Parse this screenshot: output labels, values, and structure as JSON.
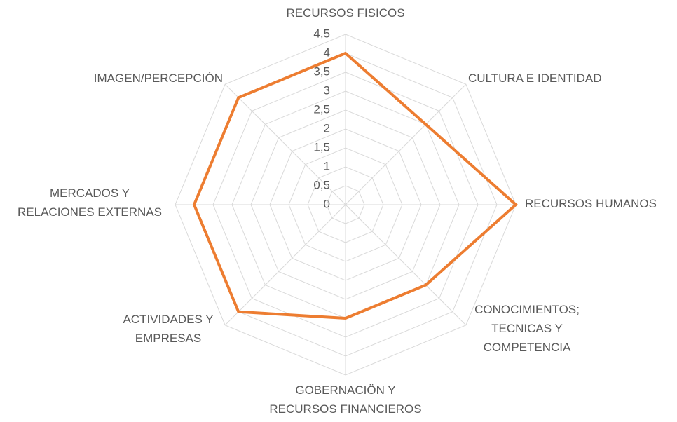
{
  "chart_data": {
    "type": "radar",
    "categories": [
      "RECURSOS FISICOS",
      "CULTURA E IDENTIDAD",
      "RECURSOS HUMANOS",
      "CONOCIMIENTOS;\nTECNICAS Y\nCOMPETENCIA",
      "GOBERNACIÖN Y\nRECURSOS FINANCIEROS",
      "ACTIVIDADES Y\nEMPRESAS",
      "MERCADOS Y\nRELACIONES EXTERNAS",
      "IMAGEN/PERCEPCIÓN"
    ],
    "values": [
      4,
      3,
      4.5,
      3,
      3,
      4,
      4,
      4
    ],
    "color": "#ed7d31",
    "rlim": [
      0,
      4.5
    ],
    "rticks": [
      0,
      {
        "value": 0.5,
        "label": "0,5"
      },
      1,
      {
        "value": 1.5,
        "label": "1,5"
      },
      2,
      {
        "value": 2.5,
        "label": "2,5"
      },
      3,
      {
        "value": 3.5,
        "label": "3,5"
      },
      4,
      {
        "value": 4.5,
        "label": "4,5"
      }
    ],
    "grid": true
  }
}
